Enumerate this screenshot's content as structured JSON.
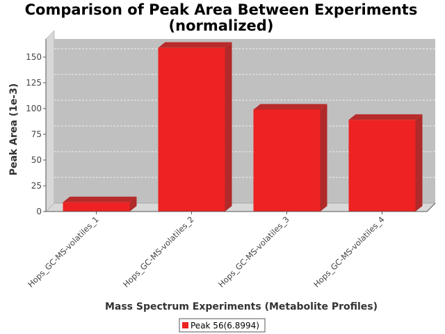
{
  "chart_data": {
    "type": "bar",
    "title_line1": "Comparison of Peak Area Between Experiments",
    "title_line2": "(normalized)",
    "xlabel": "Mass Spectrum Experiments (Metabolite Profiles)",
    "ylabel": "Peak Area (1e-3)",
    "categories": [
      "Hops_GC-MS-volatiles_1",
      "Hops_GC-MS-volatiles_2",
      "Hops_GC-MS-volatiles_3",
      "Hops_GC-MS-volatiles_4"
    ],
    "series": [
      {
        "name": "Peak 56(6.8994)",
        "values": [
          9,
          159,
          99,
          89
        ],
        "color": "#ee2222"
      }
    ],
    "yticks": [
      0,
      25,
      50,
      75,
      100,
      125,
      150
    ],
    "ylim": [
      0,
      165
    ],
    "grid": true,
    "legend": "bottom-center",
    "plot_background": "#c0c0c0"
  }
}
